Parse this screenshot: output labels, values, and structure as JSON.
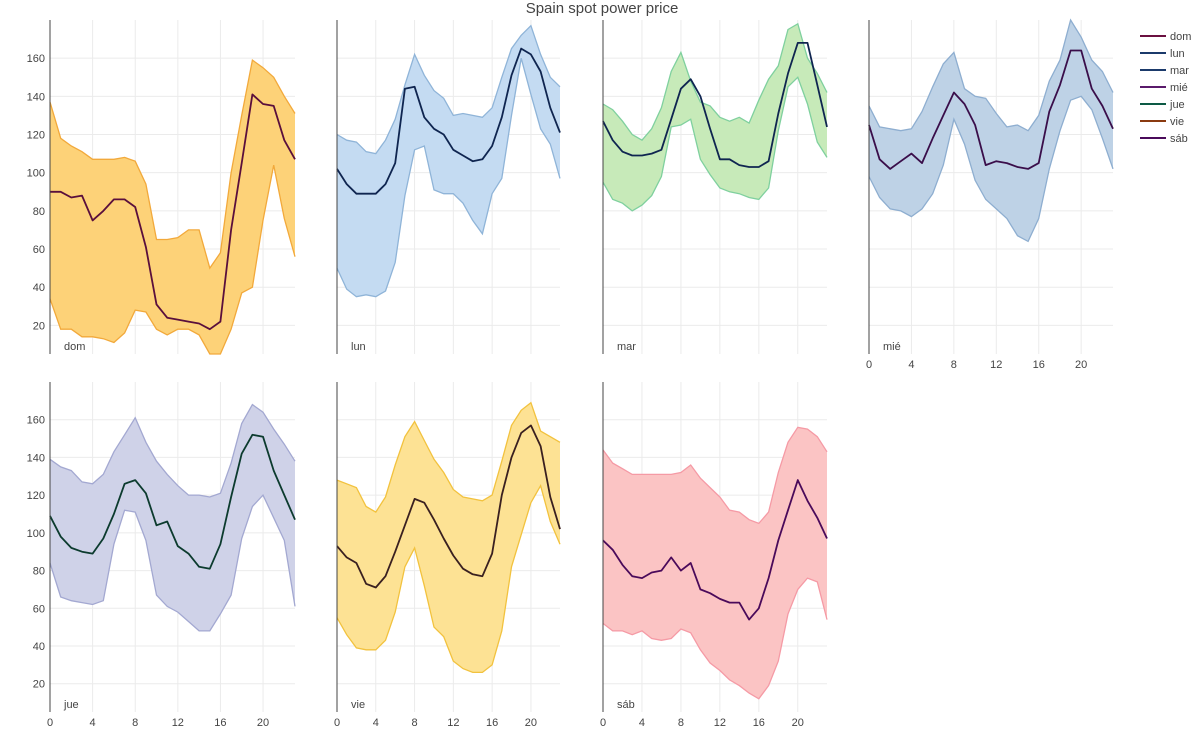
{
  "chart_data": {
    "type": "area",
    "title": "Spain spot power price",
    "ylim": [
      5,
      180
    ],
    "xlim": [
      0,
      23
    ],
    "x_ticks": [
      0,
      4,
      8,
      12,
      16,
      20
    ],
    "y_ticks": [
      20,
      40,
      60,
      80,
      100,
      120,
      140,
      160
    ],
    "grid": true,
    "legend_position": "right",
    "hours": [
      0,
      1,
      2,
      3,
      4,
      5,
      6,
      7,
      8,
      9,
      10,
      11,
      12,
      13,
      14,
      15,
      16,
      17,
      18,
      19,
      20,
      21,
      22,
      23
    ],
    "series": [
      {
        "name": "dom",
        "panel_label": "dom",
        "line_color": "#5a0f3c",
        "band_fill": "#fdd278",
        "band_edge": "#f2a93b",
        "values": [
          90,
          90,
          87,
          88,
          75,
          80,
          86,
          86,
          82,
          61,
          31,
          24,
          23,
          22,
          21,
          18,
          22,
          70,
          105,
          141,
          136,
          135,
          117,
          107
        ],
        "upper": [
          137,
          118,
          114,
          111,
          107,
          107,
          107,
          108,
          106,
          94,
          65,
          65,
          66,
          70,
          70,
          50,
          58,
          100,
          130,
          159,
          155,
          150,
          140,
          131
        ],
        "lower": [
          34,
          18,
          18,
          14,
          14,
          13,
          11,
          16,
          28,
          27,
          18,
          15,
          18,
          18,
          15,
          5,
          5,
          18,
          37,
          40,
          75,
          104,
          76,
          56
        ]
      },
      {
        "name": "lun",
        "panel_label": "lun",
        "line_color": "#0f2550",
        "band_fill": "#c4dbf2",
        "band_edge": "#8fb4d8",
        "values": [
          102,
          94,
          89,
          89,
          89,
          94,
          105,
          144,
          145,
          129,
          123,
          120,
          112,
          109,
          106,
          107,
          114,
          129,
          151,
          165,
          162,
          153,
          134,
          121
        ],
        "upper": [
          120,
          117,
          116,
          111,
          110,
          117,
          128,
          146,
          162,
          151,
          143,
          139,
          130,
          131,
          130,
          129,
          134,
          150,
          165,
          172,
          177,
          162,
          150,
          145
        ],
        "lower": [
          50,
          39,
          35,
          36,
          35,
          38,
          53,
          88,
          112,
          114,
          91,
          89,
          89,
          84,
          75,
          68,
          89,
          97,
          130,
          160,
          141,
          123,
          115,
          97
        ]
      },
      {
        "name": "mar",
        "panel_label": "mar",
        "line_color": "#0f2550",
        "band_fill": "#c7eab9",
        "band_edge": "#7fd09e",
        "values": [
          127,
          117,
          111,
          109,
          109,
          110,
          112,
          128,
          144,
          149,
          140,
          123,
          107,
          107,
          104,
          103,
          103,
          106,
          131,
          152,
          168,
          168,
          146,
          124
        ],
        "upper": [
          136,
          133,
          127,
          120,
          117,
          123,
          134,
          153,
          163,
          148,
          137,
          135,
          129,
          127,
          129,
          126,
          138,
          149,
          156,
          175,
          178,
          160,
          152,
          142
        ],
        "lower": [
          95,
          86,
          84,
          80,
          83,
          88,
          98,
          124,
          125,
          128,
          107,
          99,
          92,
          90,
          89,
          87,
          86,
          92,
          122,
          145,
          150,
          136,
          116,
          108
        ]
      },
      {
        "name": "mié",
        "panel_label": "mié",
        "line_color": "#3a0e4a",
        "band_fill": "#bed2e6",
        "band_edge": "#8eaed0",
        "values": [
          125,
          107,
          102,
          106,
          110,
          105,
          118,
          130,
          142,
          136,
          125,
          104,
          106,
          105,
          103,
          102,
          105,
          132,
          146,
          164,
          164,
          144,
          135,
          123
        ],
        "upper": [
          135,
          124,
          123,
          122,
          123,
          132,
          145,
          157,
          163,
          144,
          140,
          139,
          131,
          124,
          125,
          122,
          130,
          148,
          159,
          180,
          171,
          159,
          153,
          142
        ],
        "lower": [
          98,
          87,
          81,
          80,
          77,
          81,
          89,
          104,
          128,
          115,
          96,
          86,
          81,
          76,
          67,
          64,
          76,
          102,
          122,
          138,
          140,
          133,
          118,
          102
        ]
      },
      {
        "name": "jue",
        "panel_label": "jue",
        "line_color": "#0c3b2e",
        "band_fill": "#cfd2e8",
        "band_edge": "#a3a8d1",
        "values": [
          109,
          98,
          92,
          90,
          89,
          97,
          110,
          126,
          128,
          121,
          104,
          106,
          93,
          89,
          82,
          81,
          94,
          119,
          142,
          152,
          151,
          133,
          120,
          107
        ],
        "upper": [
          139,
          135,
          133,
          127,
          126,
          131,
          143,
          152,
          161,
          148,
          138,
          131,
          125,
          120,
          120,
          119,
          121,
          137,
          158,
          168,
          164,
          155,
          147,
          138
        ],
        "lower": [
          84,
          66,
          64,
          63,
          62,
          64,
          94,
          112,
          111,
          96,
          67,
          61,
          58,
          53,
          48,
          48,
          57,
          67,
          97,
          114,
          120,
          108,
          96,
          61
        ]
      },
      {
        "name": "vie",
        "panel_label": "vie",
        "line_color": "#3a2020",
        "band_fill": "#fde294",
        "band_edge": "#f2c23e",
        "values": [
          93,
          87,
          84,
          73,
          71,
          77,
          90,
          104,
          118,
          116,
          107,
          97,
          88,
          81,
          78,
          77,
          89,
          120,
          140,
          153,
          157,
          146,
          119,
          102
        ],
        "upper": [
          128,
          126,
          124,
          114,
          111,
          119,
          136,
          151,
          159,
          149,
          139,
          132,
          123,
          119,
          118,
          117,
          120,
          138,
          157,
          165,
          169,
          154,
          151,
          148
        ],
        "lower": [
          55,
          46,
          39,
          38,
          38,
          43,
          58,
          82,
          92,
          72,
          50,
          45,
          32,
          28,
          26,
          26,
          30,
          48,
          82,
          99,
          116,
          125,
          106,
          94
        ]
      },
      {
        "name": "sáb",
        "panel_label": "sáb",
        "line_color": "#4a0a5a",
        "band_fill": "#fbc4c4",
        "band_edge": "#f59aa5",
        "values": [
          96,
          91,
          83,
          77,
          76,
          79,
          80,
          87,
          80,
          84,
          70,
          68,
          65,
          63,
          63,
          54,
          60,
          76,
          96,
          112,
          128,
          117,
          108,
          97
        ],
        "upper": [
          144,
          137,
          134,
          131,
          131,
          131,
          131,
          131,
          132,
          136,
          129,
          124,
          119,
          112,
          111,
          107,
          105,
          111,
          132,
          148,
          156,
          155,
          151,
          143
        ],
        "lower": [
          52,
          48,
          48,
          46,
          48,
          44,
          43,
          44,
          49,
          47,
          38,
          31,
          27,
          22,
          19,
          15,
          12,
          19,
          32,
          57,
          70,
          76,
          74,
          54
        ]
      }
    ],
    "legend": [
      "dom",
      "lun",
      "mar",
      "mié",
      "jue",
      "vie",
      "sáb"
    ],
    "legend_colors": [
      "#6b1040",
      "#1b3a6b",
      "#1b3a6b",
      "#5a1a6b",
      "#0d5a45",
      "#8a3a10",
      "#4a0a5a"
    ]
  }
}
